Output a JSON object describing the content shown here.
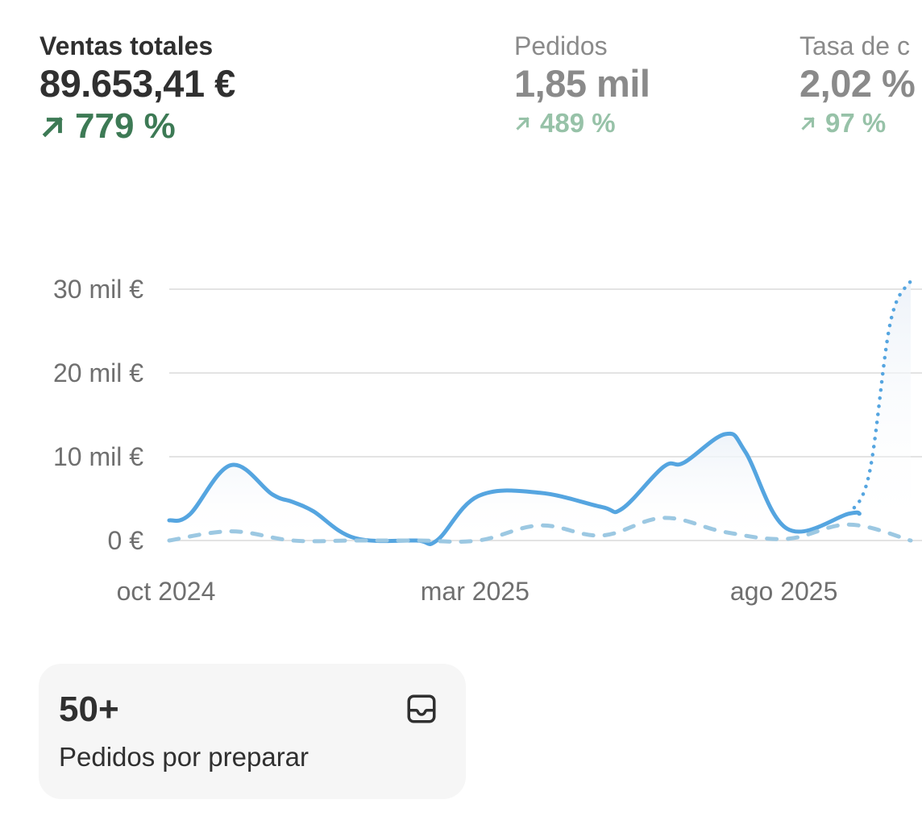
{
  "metrics": {
    "sales": {
      "label": "Ventas totales",
      "value": "89.653,41 €",
      "delta": "779 %"
    },
    "orders": {
      "label": "Pedidos",
      "value": "1,85 mil",
      "delta": "489 %"
    },
    "conversion": {
      "label": "Tasa de c",
      "value": "2,02 %",
      "delta": "97 %"
    }
  },
  "card": {
    "count": "50+",
    "caption": "Pedidos por preparar",
    "icon": "inbox-icon"
  },
  "colors": {
    "accent": "#55a5e0",
    "comparison": "#9cc8e2",
    "positive": "#3d7a55",
    "positive_muted": "#97c2a8",
    "grid": "#e3e3e3",
    "axis_text": "#6f6f6f"
  },
  "chart_data": {
    "type": "line",
    "yticks": [
      "30 mil €",
      "20 mil €",
      "10 mil €",
      "0 €"
    ],
    "ytick_values": [
      30000,
      20000,
      10000,
      0
    ],
    "ylim": [
      0,
      30000
    ],
    "xticks": [
      {
        "label": "oct 2024",
        "x": 0
      },
      {
        "label": "mar 2025",
        "x": 5
      },
      {
        "label": "ago 2025",
        "x": 10
      }
    ],
    "xlim": [
      0,
      12
    ],
    "grid": true,
    "series": [
      {
        "style": "solid",
        "x": [
          0,
          0.33,
          1,
          1.67,
          2,
          2.33,
          3,
          4,
          4.33,
          5,
          6,
          7,
          7.33,
          8,
          8.33,
          9,
          9.33,
          10,
          11,
          11.17
        ],
        "y": [
          2400,
          3100,
          9000,
          5500,
          4600,
          3500,
          300,
          0,
          0,
          5300,
          5700,
          4000,
          3800,
          8800,
          9300,
          12700,
          10500,
          1400,
          3200,
          3200
        ]
      },
      {
        "style": "dotted",
        "x": [
          11,
          11.33,
          11.67,
          12
        ],
        "y": [
          3200,
          8000,
          26000,
          31000
        ]
      },
      {
        "style": "dashed",
        "x": [
          0,
          1,
          2,
          3,
          4,
          5,
          6,
          7,
          8,
          9,
          10,
          11,
          12
        ],
        "y": [
          0,
          1100,
          0,
          0,
          0,
          0,
          1800,
          600,
          2700,
          1000,
          200,
          1900,
          0
        ]
      }
    ]
  }
}
